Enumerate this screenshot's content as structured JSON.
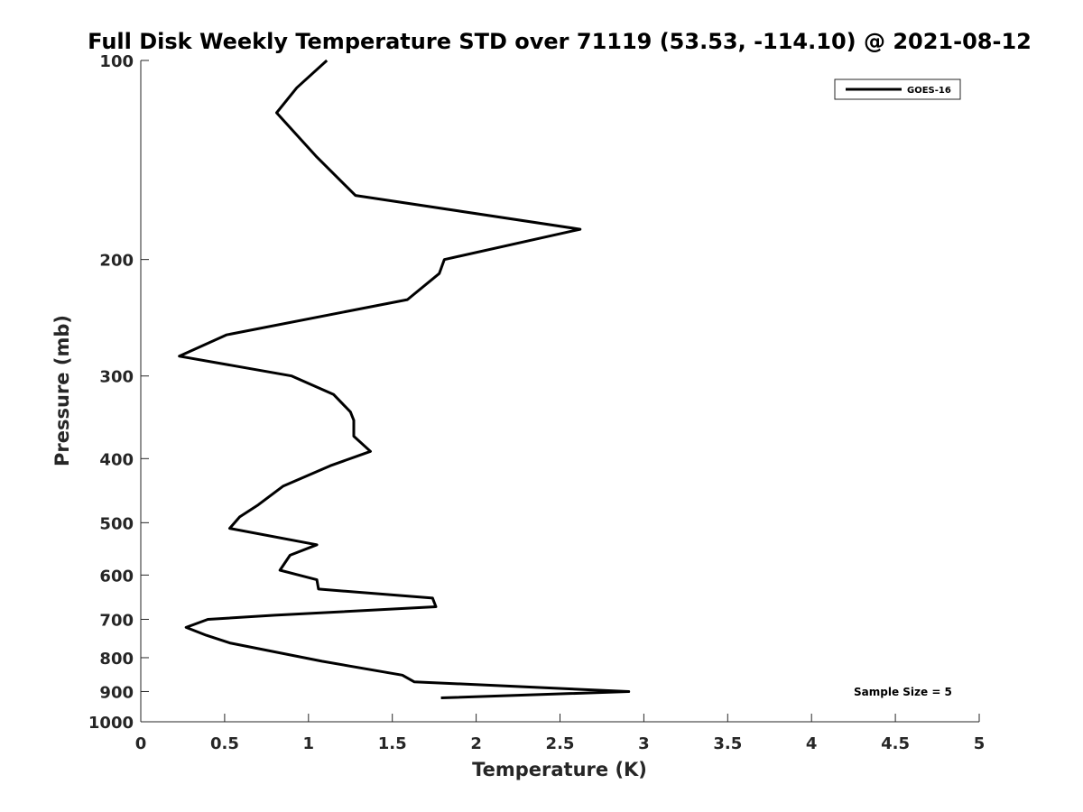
{
  "chart_data": {
    "type": "line",
    "title": "Full Disk Weekly Temperature STD over 71119 (53.53, -114.10) @ 2021-08-12",
    "xlabel": "Temperature (K)",
    "ylabel": "Pressure (mb)",
    "xlim": [
      0,
      5
    ],
    "ylim": [
      100,
      1000
    ],
    "y_scale": "log",
    "y_reversed": true,
    "grid": false,
    "legend_placement": "top-right",
    "xticks": [
      0,
      0.5,
      1,
      1.5,
      2,
      2.5,
      3,
      3.5,
      4,
      4.5,
      5
    ],
    "xtick_labels": [
      "0",
      "0.5",
      "1",
      "1.5",
      "2",
      "2.5",
      "3",
      "3.5",
      "4",
      "4.5",
      "5"
    ],
    "yticks": [
      100,
      200,
      300,
      400,
      500,
      600,
      700,
      800,
      900,
      1000
    ],
    "ytick_labels": [
      "100",
      "200",
      "300",
      "400",
      "500",
      "600",
      "700",
      "800",
      "900",
      "1000"
    ],
    "series": [
      {
        "name": "GOES-16",
        "color": "#000000",
        "x": [
          1.11,
          0.93,
          0.81,
          1.05,
          1.28,
          2.62,
          1.81,
          1.78,
          1.59,
          0.51,
          0.23,
          0.9,
          1.15,
          1.25,
          1.27,
          1.27,
          1.37,
          1.13,
          0.85,
          0.7,
          0.59,
          0.53,
          1.05,
          0.89,
          0.83,
          1.05,
          1.06,
          1.74,
          1.76,
          0.8,
          0.4,
          0.27,
          0.39,
          0.53,
          1.08,
          1.56,
          1.63,
          2.91,
          1.79
        ],
        "y": [
          100,
          110,
          120,
          140,
          160,
          180,
          200,
          210,
          230,
          260,
          280,
          300,
          320,
          340,
          350,
          370,
          390,
          410,
          440,
          470,
          490,
          510,
          540,
          560,
          590,
          610,
          630,
          650,
          670,
          690,
          700,
          720,
          740,
          760,
          810,
          850,
          870,
          900,
          920
        ]
      }
    ],
    "annotations": [
      "Sample Size = 5"
    ]
  }
}
